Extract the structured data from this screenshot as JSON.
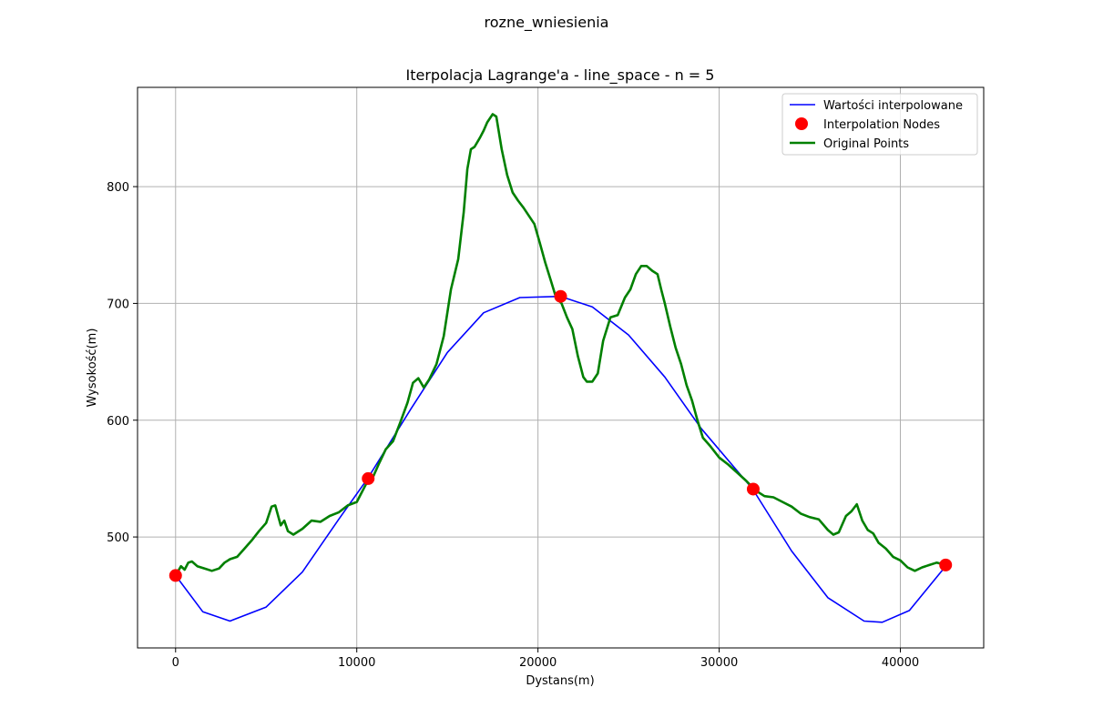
{
  "chart_data": {
    "type": "line",
    "suptitle": "rozne_wniesienia",
    "title": "Iterpolacja Lagrange'a - line_space - n = 5",
    "xlabel": "Dystans(m)",
    "ylabel": "Wysokość(m)",
    "xlim": [
      -2100,
      44600
    ],
    "ylim": [
      405,
      885
    ],
    "x_ticks": [
      0,
      10000,
      20000,
      30000,
      40000
    ],
    "y_ticks": [
      500,
      600,
      700,
      800
    ],
    "grid": true,
    "legend_position": "upper-right",
    "series": [
      {
        "name": "Wartości interpolowane",
        "kind": "line",
        "color": "#0000ff",
        "x": [
          0,
          1500,
          3000,
          5000,
          7000,
          9000,
          10600,
          13000,
          15000,
          17000,
          19000,
          21250,
          23000,
          25000,
          27000,
          29000,
          31850,
          34000,
          36000,
          38000,
          39000,
          40500,
          42500
        ],
        "y": [
          467,
          436,
          428,
          440,
          470,
          515,
          550,
          610,
          658,
          692,
          705,
          706,
          697,
          673,
          637,
          593,
          541,
          488,
          448,
          428,
          427,
          437,
          475
        ]
      },
      {
        "name": "Interpolation Nodes",
        "kind": "scatter",
        "color": "#ff0000",
        "x": [
          0,
          10630,
          21250,
          31880,
          42500
        ],
        "y": [
          467,
          550,
          706,
          541,
          476
        ]
      },
      {
        "name": "Original Points",
        "kind": "line",
        "color": "#008000",
        "x": [
          0,
          300,
          500,
          700,
          900,
          1200,
          1600,
          2000,
          2400,
          2700,
          3000,
          3400,
          3800,
          4200,
          4600,
          5000,
          5300,
          5500,
          5800,
          6000,
          6200,
          6500,
          7000,
          7500,
          8000,
          8500,
          9000,
          9500,
          10000,
          10500,
          10800,
          11200,
          11600,
          12000,
          12400,
          12800,
          13100,
          13400,
          13700,
          14000,
          14400,
          14800,
          15200,
          15600,
          15900,
          16100,
          16300,
          16500,
          16800,
          17000,
          17200,
          17500,
          17700,
          18000,
          18300,
          18600,
          18900,
          19200,
          19500,
          19800,
          20100,
          20400,
          20700,
          21000,
          21300,
          21600,
          21900,
          22200,
          22500,
          22700,
          23000,
          23300,
          23600,
          24000,
          24400,
          24800,
          25100,
          25400,
          25700,
          26000,
          26300,
          26600,
          26800,
          27000,
          27300,
          27600,
          27900,
          28200,
          28500,
          28800,
          29100,
          29500,
          30000,
          30500,
          31000,
          31500,
          32000,
          32500,
          33000,
          33500,
          34000,
          34500,
          35000,
          35500,
          36000,
          36300,
          36600,
          37000,
          37300,
          37600,
          37900,
          38200,
          38500,
          38800,
          39200,
          39600,
          40000,
          40400,
          40800,
          41200,
          41600,
          42000,
          42500
        ],
        "y": [
          467,
          475,
          472,
          478,
          479,
          475,
          473,
          471,
          473,
          478,
          481,
          483,
          490,
          497,
          505,
          512,
          526,
          527,
          510,
          514,
          505,
          502,
          507,
          514,
          513,
          518,
          521,
          527,
          530,
          545,
          548,
          562,
          575,
          582,
          598,
          615,
          632,
          636,
          628,
          635,
          648,
          672,
          712,
          738,
          778,
          815,
          832,
          834,
          842,
          848,
          855,
          862,
          860,
          832,
          810,
          795,
          788,
          782,
          775,
          768,
          752,
          735,
          720,
          705,
          700,
          688,
          678,
          655,
          637,
          633,
          633,
          640,
          668,
          688,
          690,
          705,
          712,
          725,
          732,
          732,
          728,
          725,
          712,
          700,
          680,
          662,
          648,
          630,
          617,
          600,
          585,
          578,
          568,
          562,
          555,
          548,
          540,
          535,
          534,
          530,
          526,
          520,
          517,
          515,
          506,
          502,
          504,
          518,
          522,
          528,
          514,
          506,
          503,
          495,
          490,
          483,
          480,
          474,
          471,
          474,
          476,
          478,
          476
        ]
      }
    ]
  }
}
